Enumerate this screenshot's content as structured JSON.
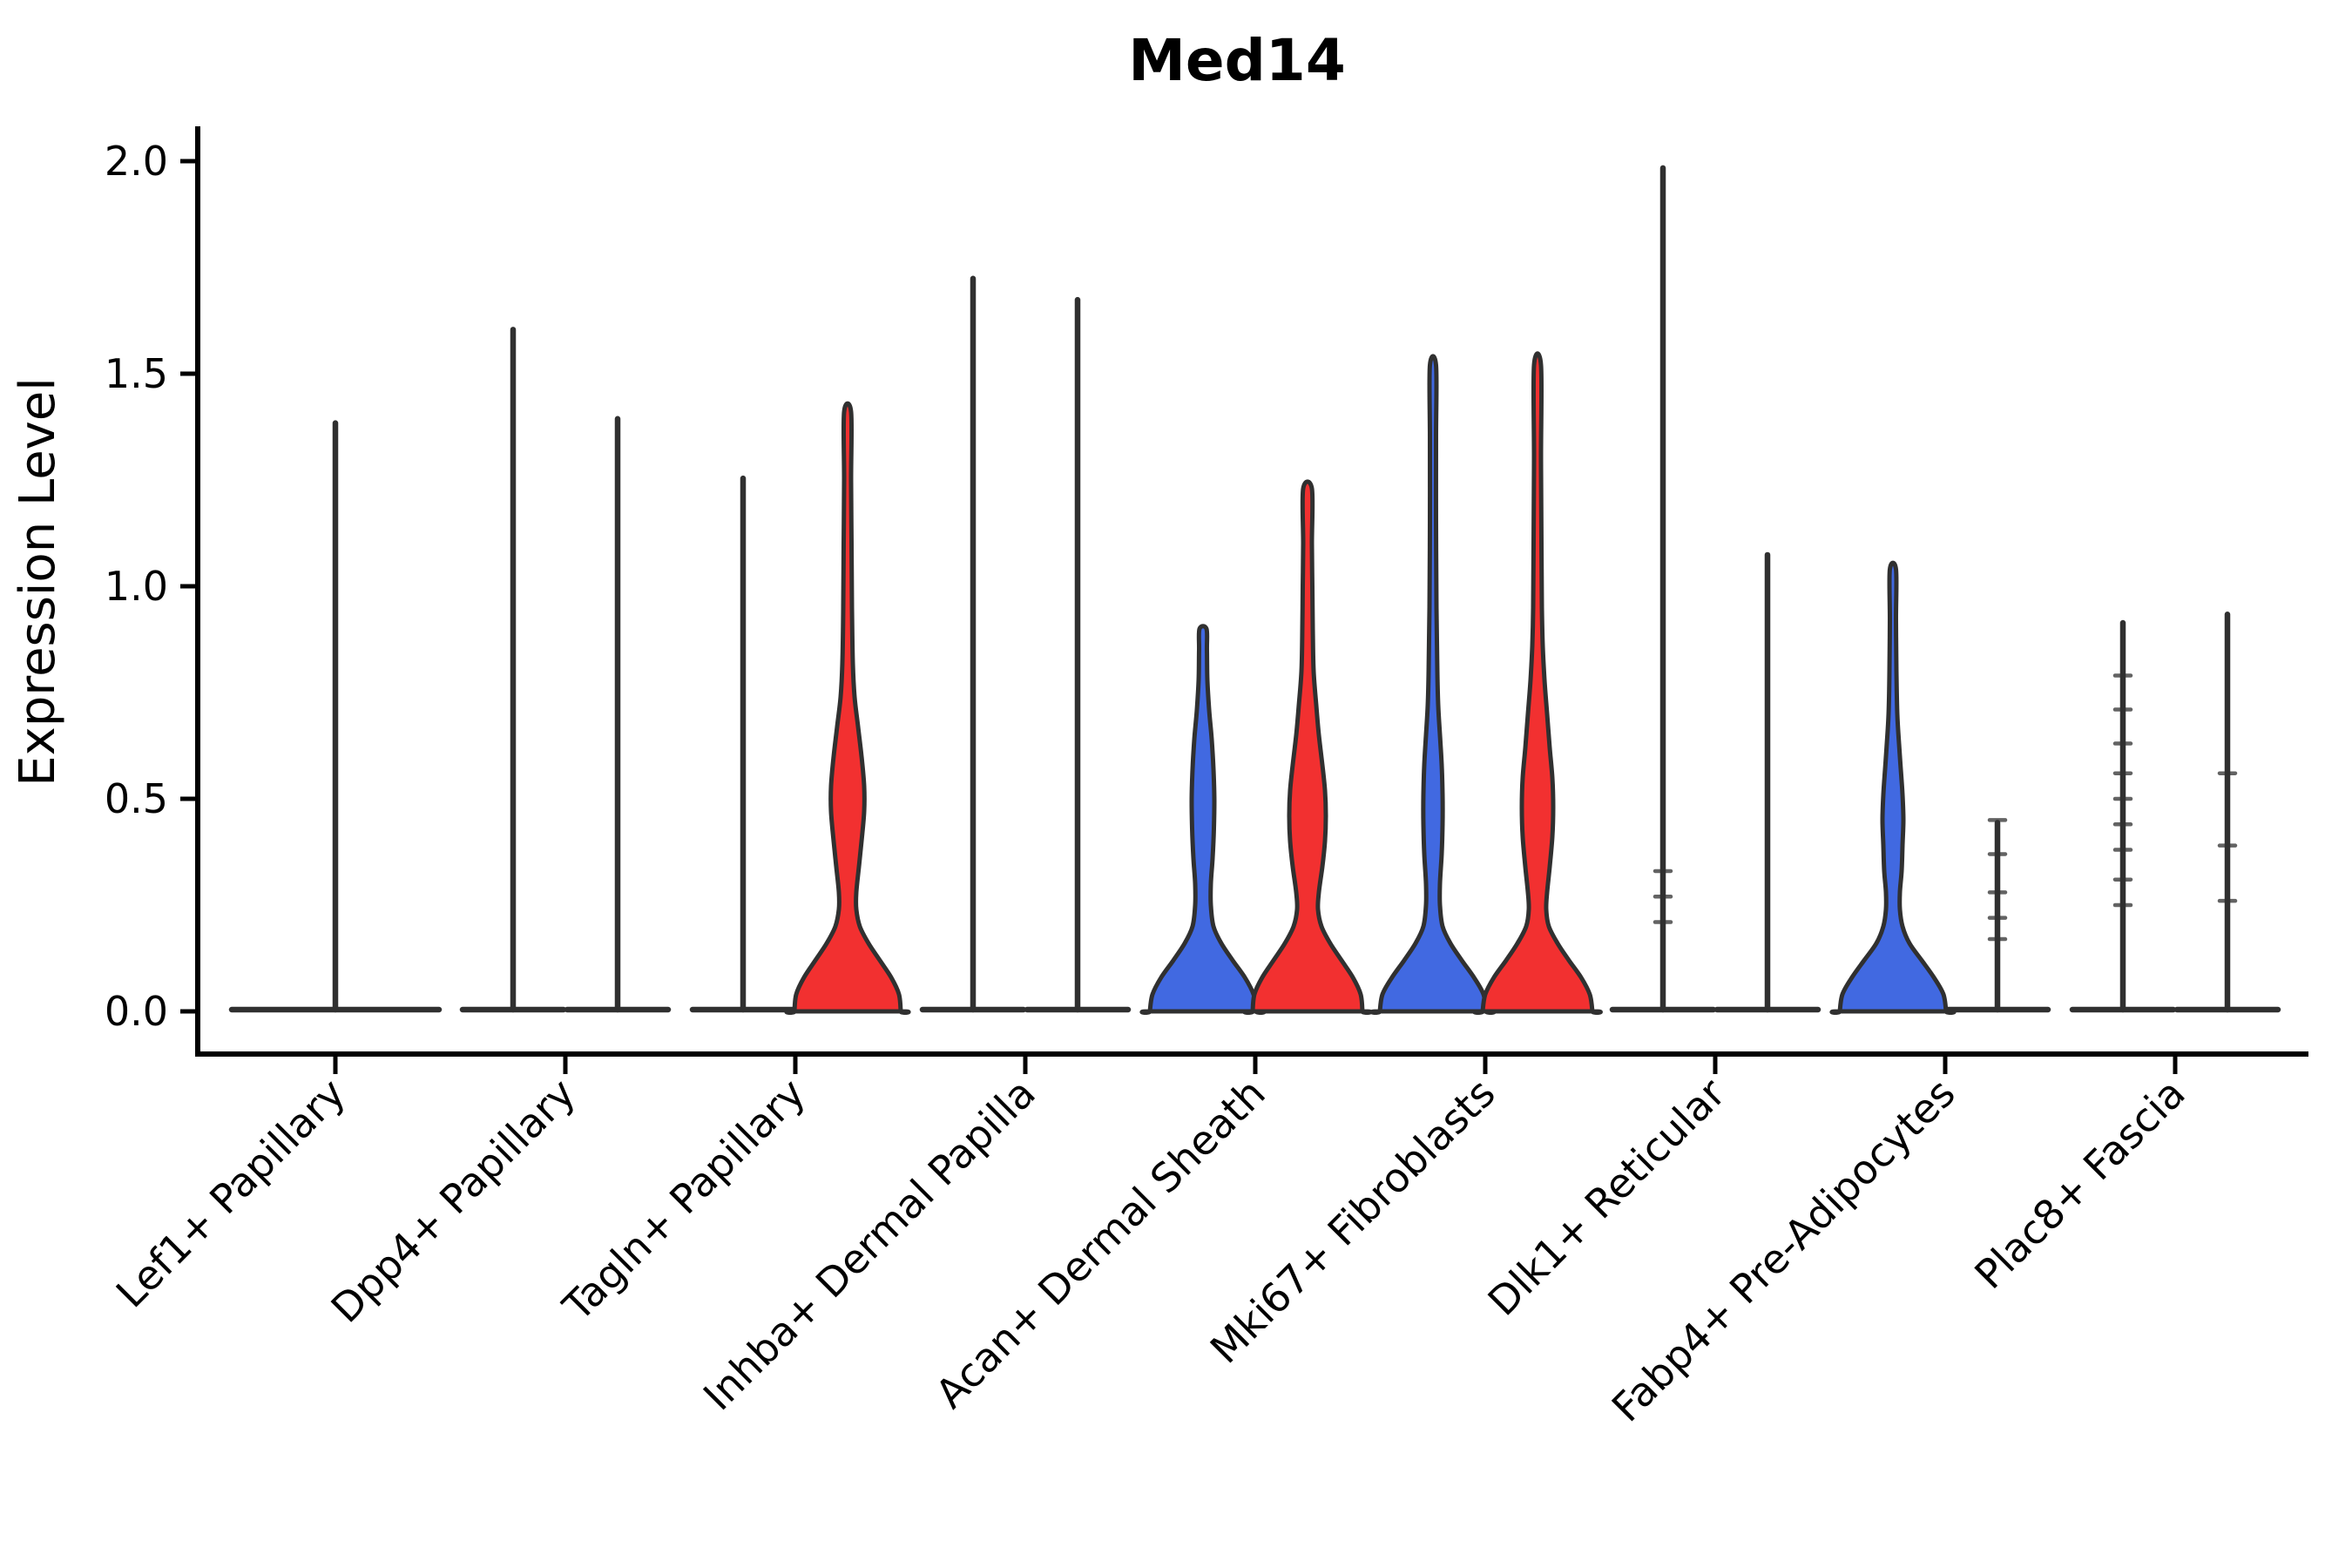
{
  "chart_data": {
    "type": "violin",
    "title": "Med14",
    "ylabel": "Expression Level",
    "xlabel": "",
    "ylim": [
      0,
      2.05
    ],
    "yticks": [
      0.0,
      0.5,
      1.0,
      1.5,
      2.0
    ],
    "ytick_labels": [
      "0.0",
      "0.5",
      "1.0",
      "1.5",
      "2.0"
    ],
    "grid": false,
    "legend": "none",
    "colors": {
      "blue": "#4169E1",
      "red": "#F23030",
      "outline": "#303030",
      "axis": "#000000"
    },
    "categories": [
      "Lef1+ Papillary",
      "Dpp4+ Papillary",
      "Tagln+ Papillary",
      "Inhba+ Dermal Papilla",
      "Acan+ Dermal Sheath",
      "Mki67+ Fibroblasts",
      "Dlk1+ Reticular",
      "Fabp4+ Pre-Adipocytes",
      "Plac8+ Fascia"
    ],
    "violins": [
      {
        "category": "Lef1+ Papillary",
        "items": [
          {
            "position": "center",
            "render": "line",
            "width": "full",
            "max_expression": 1.39
          }
        ]
      },
      {
        "category": "Dpp4+ Papillary",
        "items": [
          {
            "position": "left",
            "render": "line",
            "max_expression": 1.61
          },
          {
            "position": "right",
            "render": "line",
            "max_expression": 1.4
          }
        ]
      },
      {
        "category": "Tagln+ Papillary",
        "items": [
          {
            "position": "left",
            "render": "line",
            "max_expression": 1.26
          },
          {
            "position": "right",
            "render": "violin",
            "fill": "red",
            "max_expression": 1.41,
            "profile": [
              [
                0,
                61
              ],
              [
                0.04,
                59
              ],
              [
                0.08,
                50
              ],
              [
                0.12,
                37
              ],
              [
                0.16,
                24
              ],
              [
                0.2,
                14
              ],
              [
                0.24,
                10
              ],
              [
                0.28,
                10
              ],
              [
                0.34,
                13
              ],
              [
                0.4,
                16
              ],
              [
                0.47,
                19
              ],
              [
                0.53,
                19
              ],
              [
                0.6,
                16
              ],
              [
                0.67,
                12
              ],
              [
                0.74,
                8
              ],
              [
                0.82,
                6
              ],
              [
                0.95,
                5
              ],
              [
                1.1,
                4.5
              ],
              [
                1.25,
                4
              ],
              [
                1.41,
                4
              ]
            ]
          }
        ]
      },
      {
        "category": "Inhba+ Dermal Papilla",
        "items": [
          {
            "position": "left",
            "render": "line",
            "max_expression": 1.73
          },
          {
            "position": "right",
            "render": "line",
            "max_expression": 1.68
          }
        ]
      },
      {
        "category": "Acan+ Dermal Sheath",
        "items": [
          {
            "position": "left",
            "render": "violin",
            "fill": "blue",
            "max_expression": 0.9,
            "profile": [
              [
                0,
                61
              ],
              [
                0.04,
                58
              ],
              [
                0.08,
                48
              ],
              [
                0.12,
                34
              ],
              [
                0.16,
                21
              ],
              [
                0.2,
                12
              ],
              [
                0.25,
                9
              ],
              [
                0.3,
                9
              ],
              [
                0.36,
                11
              ],
              [
                0.43,
                12.5
              ],
              [
                0.5,
                13
              ],
              [
                0.57,
                12
              ],
              [
                0.64,
                10
              ],
              [
                0.71,
                7
              ],
              [
                0.78,
                5
              ],
              [
                0.85,
                4.5
              ],
              [
                0.9,
                4
              ]
            ]
          },
          {
            "position": "right",
            "render": "violin",
            "fill": "red",
            "max_expression": 1.23,
            "profile": [
              [
                0,
                63
              ],
              [
                0.04,
                61
              ],
              [
                0.08,
                52
              ],
              [
                0.12,
                39
              ],
              [
                0.16,
                26
              ],
              [
                0.2,
                16
              ],
              [
                0.24,
                12
              ],
              [
                0.28,
                13
              ],
              [
                0.34,
                17
              ],
              [
                0.4,
                20
              ],
              [
                0.46,
                21
              ],
              [
                0.52,
                20
              ],
              [
                0.58,
                17
              ],
              [
                0.65,
                13
              ],
              [
                0.72,
                10
              ],
              [
                0.8,
                7
              ],
              [
                0.9,
                6
              ],
              [
                1.0,
                5.5
              ],
              [
                1.1,
                5
              ],
              [
                1.23,
                5
              ]
            ]
          }
        ]
      },
      {
        "category": "Mki67+ Fibroblasts",
        "items": [
          {
            "position": "left",
            "render": "violin",
            "fill": "blue",
            "max_expression": 1.52,
            "profile": [
              [
                0,
                61
              ],
              [
                0.04,
                58
              ],
              [
                0.08,
                47
              ],
              [
                0.12,
                33
              ],
              [
                0.16,
                20
              ],
              [
                0.2,
                11
              ],
              [
                0.25,
                8
              ],
              [
                0.3,
                8
              ],
              [
                0.37,
                10
              ],
              [
                0.44,
                11
              ],
              [
                0.51,
                11
              ],
              [
                0.58,
                10
              ],
              [
                0.65,
                8
              ],
              [
                0.72,
                6
              ],
              [
                0.8,
                5
              ],
              [
                0.95,
                4
              ],
              [
                1.15,
                3.5
              ],
              [
                1.35,
                3.5
              ],
              [
                1.52,
                3.5
              ]
            ]
          },
          {
            "position": "right",
            "render": "violin",
            "fill": "red",
            "max_expression": 1.52,
            "profile": [
              [
                0,
                63
              ],
              [
                0.04,
                60
              ],
              [
                0.08,
                50
              ],
              [
                0.12,
                36
              ],
              [
                0.16,
                23
              ],
              [
                0.2,
                13
              ],
              [
                0.24,
                10
              ],
              [
                0.28,
                11
              ],
              [
                0.34,
                14
              ],
              [
                0.41,
                17
              ],
              [
                0.48,
                18
              ],
              [
                0.55,
                17
              ],
              [
                0.62,
                14
              ],
              [
                0.7,
                11
              ],
              [
                0.78,
                8
              ],
              [
                0.86,
                6
              ],
              [
                0.95,
                5
              ],
              [
                1.1,
                4.5
              ],
              [
                1.3,
                4
              ],
              [
                1.52,
                4
              ]
            ]
          }
        ]
      },
      {
        "category": "Dlk1+ Reticular",
        "items": [
          {
            "position": "left",
            "render": "line",
            "max_expression": 1.99,
            "marks": [
              0.33,
              0.27,
              0.21
            ]
          },
          {
            "position": "right",
            "render": "line",
            "max_expression": 1.08
          }
        ]
      },
      {
        "category": "Fabp4+ Pre-Adipocytes",
        "items": [
          {
            "position": "left",
            "render": "violin",
            "fill": "blue",
            "max_expression": 1.04,
            "profile": [
              [
                0,
                61
              ],
              [
                0.04,
                58
              ],
              [
                0.08,
                47
              ],
              [
                0.12,
                33
              ],
              [
                0.16,
                19
              ],
              [
                0.2,
                11
              ],
              [
                0.24,
                8
              ],
              [
                0.28,
                8
              ],
              [
                0.33,
                10
              ],
              [
                0.39,
                11
              ],
              [
                0.45,
                12
              ],
              [
                0.51,
                11
              ],
              [
                0.57,
                9
              ],
              [
                0.63,
                7
              ],
              [
                0.7,
                5
              ],
              [
                0.8,
                4
              ],
              [
                0.92,
                3.5
              ],
              [
                1.04,
                3.5
              ]
            ]
          },
          {
            "position": "right",
            "render": "line",
            "max_expression": 0.45,
            "marks": [
              0.45,
              0.37,
              0.28,
              0.22,
              0.17
            ]
          }
        ]
      },
      {
        "category": "Plac8+ Fascia",
        "items": [
          {
            "position": "left",
            "render": "line",
            "max_expression": 0.92,
            "marks": [
              0.79,
              0.71,
              0.63,
              0.56,
              0.5,
              0.44,
              0.38,
              0.31,
              0.25
            ]
          },
          {
            "position": "right",
            "render": "line",
            "max_expression": 0.94,
            "marks": [
              0.56,
              0.39,
              0.26
            ]
          }
        ]
      }
    ]
  }
}
